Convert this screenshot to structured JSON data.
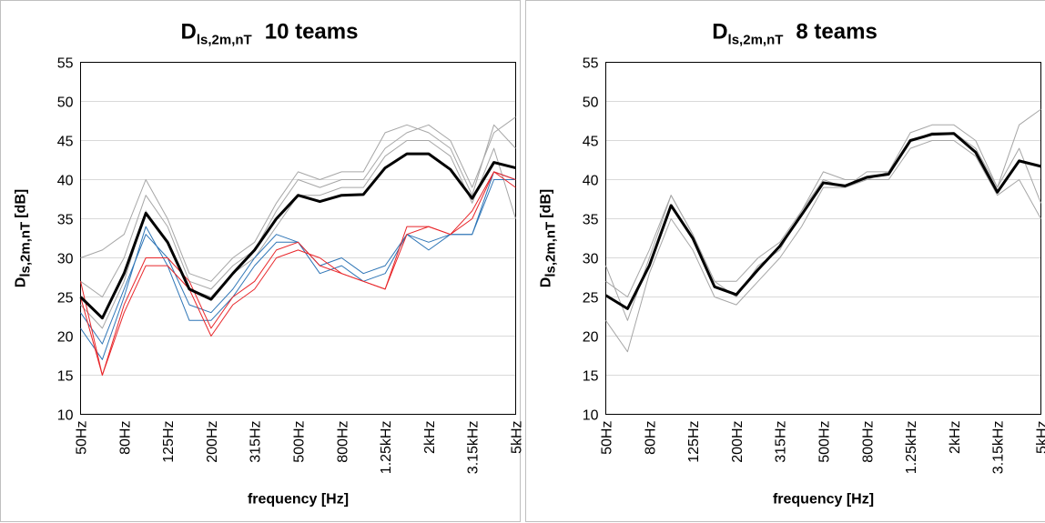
{
  "chart_data": [
    {
      "type": "line",
      "title": "D",
      "title_subscript": "ls,2m,nT",
      "title_suffix": "10 teams",
      "y_label": "D",
      "y_label_subscript": "ls,2m,nT",
      "y_label_suffix": "[dB]",
      "x_label": "frequency [Hz]",
      "categories": [
        "50Hz",
        null,
        "80Hz",
        null,
        "125Hz",
        null,
        "200Hz",
        null,
        "315Hz",
        null,
        "500Hz",
        null,
        "800Hz",
        null,
        "1.25kHz",
        null,
        "2kHz",
        null,
        "3.15kHz",
        null,
        "5kHz"
      ],
      "ylim": [
        10,
        55
      ],
      "yticks": [
        10,
        15,
        20,
        25,
        30,
        35,
        40,
        45,
        50,
        55
      ],
      "grid": true,
      "series": [
        {
          "color": "#a6a6a6",
          "width": 1,
          "values": [
            27,
            25,
            30,
            38,
            34,
            27,
            26,
            29,
            31,
            36,
            40,
            39,
            40,
            40,
            44,
            46,
            47,
            45,
            39,
            46,
            48
          ]
        },
        {
          "color": "#a6a6a6",
          "width": 1,
          "values": [
            24,
            21,
            27,
            36,
            32,
            26,
            25,
            28,
            30,
            34,
            38,
            38,
            39,
            39,
            43,
            45,
            45,
            43,
            37,
            44,
            35
          ]
        },
        {
          "color": "#a6a6a6",
          "width": 1,
          "values": [
            30,
            31,
            33,
            40,
            35,
            28,
            27,
            30,
            32,
            37,
            41,
            40,
            41,
            41,
            46,
            47,
            46,
            44,
            38,
            47,
            44
          ]
        },
        {
          "color": "#2e75b6",
          "width": 1,
          "values": [
            23,
            19,
            26,
            33,
            30,
            24,
            23,
            26,
            30,
            33,
            32,
            29,
            30,
            28,
            29,
            33,
            32,
            33,
            33,
            41,
            40
          ]
        },
        {
          "color": "#2e75b6",
          "width": 1,
          "values": [
            21,
            17,
            25,
            34,
            29,
            22,
            22,
            25,
            29,
            32,
            32,
            28,
            29,
            27,
            28,
            33,
            31,
            33,
            33,
            40,
            40
          ]
        },
        {
          "color": "#e8262a",
          "width": 1,
          "values": [
            27,
            15,
            24,
            30,
            30,
            27,
            21,
            25,
            27,
            31,
            32,
            29,
            28,
            27,
            26,
            34,
            34,
            33,
            36,
            41,
            40
          ]
        },
        {
          "color": "#e8262a",
          "width": 1,
          "values": [
            25,
            15,
            23,
            29,
            29,
            26,
            20,
            24,
            26,
            30,
            31,
            30,
            28,
            27,
            26,
            33,
            34,
            33,
            35,
            41,
            39
          ]
        },
        {
          "color": "#000000",
          "width": 3,
          "values": [
            25,
            22.3,
            28,
            35.7,
            32,
            26,
            24.7,
            28,
            31,
            35,
            38,
            37.2,
            38,
            38.1,
            41.5,
            43.3,
            43.3,
            41.3,
            37.6,
            42.2,
            41.5
          ]
        }
      ]
    },
    {
      "type": "line",
      "title": "D",
      "title_subscript": "ls,2m,nT",
      "title_suffix": "8 teams",
      "y_label": "D",
      "y_label_subscript": "ls,2m,nT",
      "y_label_suffix": "[dB]",
      "x_label": "frequency [Hz]",
      "categories": [
        "50Hz",
        null,
        "80Hz",
        null,
        "125Hz",
        null,
        "200Hz",
        null,
        "315Hz",
        null,
        "500Hz",
        null,
        "800Hz",
        null,
        "1.25kHz",
        null,
        "2kHz",
        null,
        "3.15kHz",
        null,
        "5kHz"
      ],
      "ylim": [
        10,
        55
      ],
      "yticks": [
        10,
        15,
        20,
        25,
        30,
        35,
        40,
        45,
        50,
        55
      ],
      "grid": true,
      "series": [
        {
          "color": "#a6a6a6",
          "width": 1,
          "values": [
            29,
            22,
            30,
            38,
            33,
            27,
            27,
            30,
            32,
            36,
            41,
            40,
            40,
            41,
            46,
            47,
            47,
            45,
            39,
            47,
            49
          ]
        },
        {
          "color": "#a6a6a6",
          "width": 1,
          "values": [
            22,
            18,
            28,
            35,
            31,
            25,
            24,
            27,
            30,
            34,
            39,
            39,
            40,
            40,
            44,
            45,
            45,
            43,
            38,
            40,
            35
          ]
        },
        {
          "color": "#a6a6a6",
          "width": 1,
          "values": [
            27,
            25,
            31,
            38,
            33,
            27,
            25,
            29,
            31,
            36,
            40,
            39,
            41,
            41,
            45,
            46,
            46,
            44,
            39,
            44,
            37
          ]
        },
        {
          "color": "#000000",
          "width": 3,
          "values": [
            25.2,
            23.5,
            29,
            36.7,
            32.5,
            26.3,
            25.3,
            28.5,
            31.5,
            35.5,
            39.6,
            39.2,
            40.3,
            40.7,
            45,
            45.8,
            45.9,
            43.5,
            38.4,
            42.4,
            41.7
          ]
        }
      ]
    }
  ]
}
